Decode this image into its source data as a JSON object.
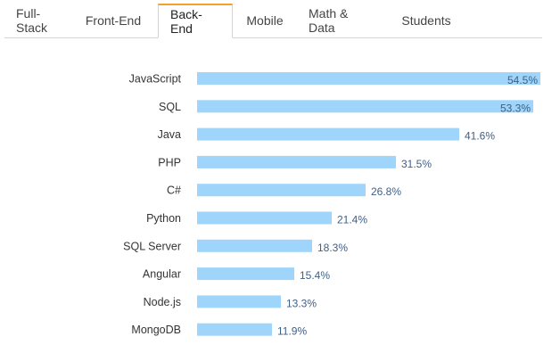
{
  "tabs": {
    "items": [
      "Full-Stack",
      "Front-End",
      "Back-End",
      "Mobile",
      "Math & Data",
      "Students"
    ],
    "active_index": 2,
    "accent_color": "#f4a02b"
  },
  "chart_data": {
    "type": "bar",
    "orientation": "horizontal",
    "title": "",
    "xlabel": "",
    "ylabel": "",
    "categories": [
      "JavaScript",
      "SQL",
      "Java",
      "PHP",
      "C#",
      "Python",
      "SQL Server",
      "Angular",
      "Node.js",
      "MongoDB"
    ],
    "values": [
      54.5,
      53.3,
      41.6,
      31.5,
      26.8,
      21.4,
      18.3,
      15.4,
      13.3,
      11.9
    ],
    "value_labels": [
      "54.5%",
      "53.3%",
      "41.6%",
      "31.5%",
      "26.8%",
      "21.4%",
      "18.3%",
      "15.4%",
      "13.3%",
      "11.9%"
    ],
    "xlim": [
      0,
      54.5
    ],
    "bar_color": "#9fd5fb",
    "grid": false,
    "legend": "none"
  }
}
